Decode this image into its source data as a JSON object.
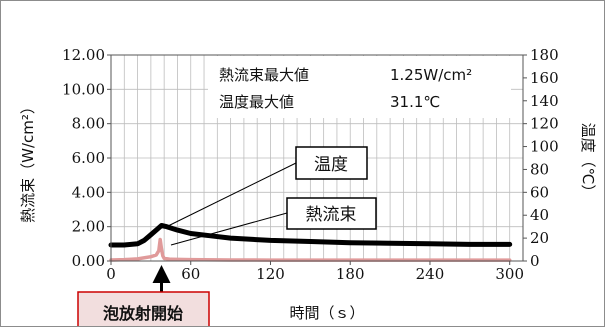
{
  "chart_data": {
    "type": "line",
    "x": {
      "label": "時間（ｓ）",
      "lim": [
        0,
        310
      ],
      "ticks": [
        0,
        60,
        120,
        180,
        240,
        300
      ],
      "tick_labels": [
        "0",
        "60",
        "120",
        "180",
        "240",
        "300"
      ],
      "grid_minor_step": 10
    },
    "y_left": {
      "label": "熱流束（W/cm²）",
      "lim": [
        0,
        12
      ],
      "ticks": [
        0,
        2,
        4,
        6,
        8,
        10,
        12
      ],
      "tick_labels": [
        "0.00",
        "2.00",
        "4.00",
        "6.00",
        "8.00",
        "10.00",
        "12.00"
      ]
    },
    "y_right": {
      "label": "温度（℃）",
      "lim": [
        0,
        180
      ],
      "ticks": [
        0,
        20,
        40,
        60,
        80,
        100,
        120,
        140,
        160,
        180
      ],
      "tick_labels": [
        "0",
        "20",
        "40",
        "60",
        "80",
        "100",
        "120",
        "140",
        "160",
        "180"
      ]
    },
    "grid": true,
    "series": [
      {
        "name": "温度",
        "axis": "right",
        "color": "#000000",
        "x": [
          0,
          10,
          20,
          25,
          30,
          35,
          38,
          42,
          50,
          60,
          75,
          90,
          120,
          150,
          180,
          210,
          240,
          270,
          300
        ],
        "y": [
          14,
          14,
          15,
          18,
          23,
          28,
          31,
          30,
          27,
          24,
          22,
          20,
          18,
          17,
          16,
          15.5,
          15,
          14.5,
          14.5
        ]
      },
      {
        "name": "熱流束",
        "axis": "left",
        "color": "#e09a9a",
        "x": [
          0,
          10,
          20,
          30,
          34,
          36,
          37,
          38,
          39,
          40,
          45,
          60,
          90,
          120,
          180,
          240,
          300
        ],
        "y": [
          0.06,
          0.08,
          0.12,
          0.25,
          0.35,
          0.6,
          1.25,
          0.7,
          0.3,
          0.15,
          0.1,
          0.08,
          0.06,
          0.05,
          0.05,
          0.05,
          0.05
        ]
      }
    ],
    "stats": [
      {
        "label": "熱流束最大値",
        "value": "1.25W/cm²"
      },
      {
        "label": "温度最大値",
        "value": "31.1℃"
      }
    ],
    "annotations": {
      "temperature_callout": "温度",
      "heatflux_callout": "熱流束",
      "start_marker_label": "泡放射開始",
      "start_marker_x": 38
    }
  }
}
